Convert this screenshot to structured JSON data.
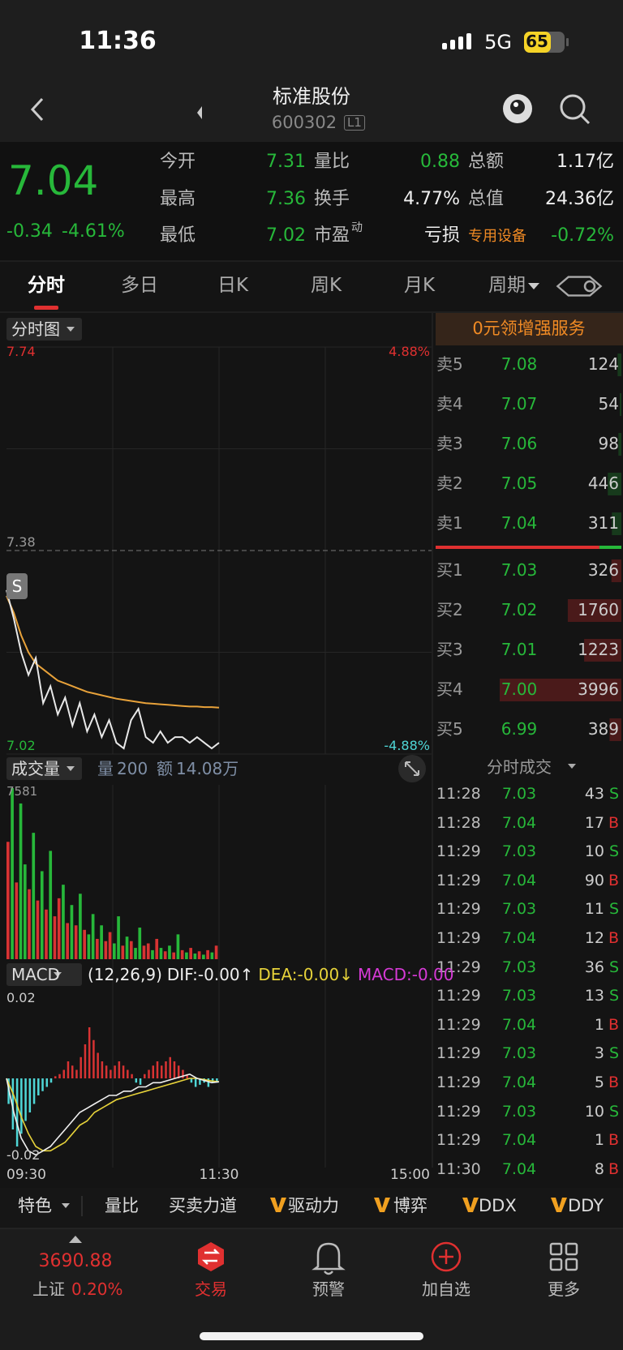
{
  "status_bar": {
    "time": "11:36",
    "network": "5G",
    "battery": "65"
  },
  "header": {
    "title": "标准股份",
    "code": "600302",
    "level": "L1"
  },
  "quote": {
    "price": "7.04",
    "change": "-0.34",
    "change_pct": "-4.61%",
    "fields": [
      {
        "label": "今开",
        "value": "7.31",
        "color": "#27b83a"
      },
      {
        "label": "量比",
        "value": "0.88",
        "color": "#27b83a"
      },
      {
        "label": "总额",
        "value": "1.17亿",
        "color": "#f0f0f0"
      },
      {
        "label": "最高",
        "value": "7.36",
        "color": "#27b83a"
      },
      {
        "label": "换手",
        "value": "4.77%",
        "color": "#f0f0f0"
      },
      {
        "label": "总值",
        "value": "24.36亿",
        "color": "#f0f0f0"
      },
      {
        "label": "最低",
        "value": "7.02",
        "color": "#27b83a"
      },
      {
        "label": "市盈",
        "sup": "动",
        "value": "亏损",
        "color": "#f0f0f0"
      },
      {
        "label": "专用设备",
        "label_color": "#f08a24",
        "value": "-0.72%",
        "color": "#27b83a"
      }
    ]
  },
  "tabs": [
    "分时",
    "多日",
    "日K",
    "周K",
    "月K",
    "周期"
  ],
  "chart": {
    "label": "分时图",
    "promo": "0元领增强服务",
    "marker": "S",
    "ylim": [
      7.02,
      7.74
    ],
    "yticks": [
      7.74,
      7.38,
      7.02
    ],
    "top_pct": "4.88%",
    "bottom_pct": "-4.88%",
    "price_color": "#e8e8e8",
    "avg_color": "#e8a23a",
    "price": [
      7.31,
      7.26,
      7.2,
      7.16,
      7.19,
      7.11,
      7.14,
      7.09,
      7.12,
      7.07,
      7.11,
      7.06,
      7.09,
      7.05,
      7.08,
      7.04,
      7.03,
      7.08,
      7.1,
      7.05,
      7.04,
      7.06,
      7.04,
      7.05,
      7.05,
      7.04,
      7.05,
      7.04,
      7.03,
      7.04
    ],
    "avg": [
      7.3,
      7.27,
      7.23,
      7.2,
      7.18,
      7.17,
      7.16,
      7.15,
      7.145,
      7.14,
      7.135,
      7.13,
      7.127,
      7.124,
      7.121,
      7.118,
      7.116,
      7.114,
      7.112,
      7.11,
      7.109,
      7.108,
      7.107,
      7.106,
      7.105,
      7.104,
      7.104,
      7.103,
      7.103,
      7.102
    ]
  },
  "order_book": [
    {
      "side": "卖5",
      "price": "7.08",
      "volume": 124
    },
    {
      "side": "卖4",
      "price": "7.07",
      "volume": 54
    },
    {
      "side": "卖3",
      "price": "7.06",
      "volume": 98
    },
    {
      "side": "卖2",
      "price": "7.05",
      "volume": 446
    },
    {
      "side": "卖1",
      "price": "7.04",
      "volume": 311
    },
    {
      "side": "买1",
      "price": "7.03",
      "volume": 326
    },
    {
      "side": "买2",
      "price": "7.02",
      "volume": 1760
    },
    {
      "side": "买3",
      "price": "7.01",
      "volume": 1223
    },
    {
      "side": "买4",
      "price": "7.00",
      "volume": 3996
    },
    {
      "side": "买5",
      "price": "6.99",
      "volume": 389
    }
  ],
  "trades": {
    "title": "分时成交",
    "rows": [
      {
        "time": "11:28",
        "price": "7.03",
        "volume": 43,
        "side": "S"
      },
      {
        "time": "11:28",
        "price": "7.04",
        "volume": 17,
        "side": "B"
      },
      {
        "time": "11:29",
        "price": "7.03",
        "volume": 10,
        "side": "S"
      },
      {
        "time": "11:29",
        "price": "7.04",
        "volume": 90,
        "side": "B"
      },
      {
        "time": "11:29",
        "price": "7.03",
        "volume": 11,
        "side": "S"
      },
      {
        "time": "11:29",
        "price": "7.04",
        "volume": 12,
        "side": "B"
      },
      {
        "time": "11:29",
        "price": "7.03",
        "volume": 36,
        "side": "S"
      },
      {
        "time": "11:29",
        "price": "7.03",
        "volume": 13,
        "side": "S"
      },
      {
        "time": "11:29",
        "price": "7.04",
        "volume": 1,
        "side": "B"
      },
      {
        "time": "11:29",
        "price": "7.03",
        "volume": 3,
        "side": "S"
      },
      {
        "time": "11:29",
        "price": "7.04",
        "volume": 5,
        "side": "B"
      },
      {
        "time": "11:29",
        "price": "7.03",
        "volume": 10,
        "side": "S"
      },
      {
        "time": "11:29",
        "price": "7.04",
        "volume": 1,
        "side": "B"
      },
      {
        "time": "11:30",
        "price": "7.04",
        "volume": 8,
        "side": "B"
      }
    ]
  },
  "volume": {
    "label": "成交量",
    "amount_label": "量",
    "amount": "200",
    "turnover_label": "额",
    "turnover": "14.08万",
    "ylim": [
      0,
      7581
    ],
    "yticks": [
      7581
    ],
    "values": [
      5200,
      7581,
      3400,
      6900,
      4200,
      3100,
      5600,
      2600,
      3900,
      2200,
      4800,
      1900,
      2700,
      3300,
      1600,
      2400,
      1500,
      2900,
      1300,
      1100,
      2000,
      900,
      1500,
      800,
      1200,
      700,
      1900,
      600,
      1000,
      800,
      500,
      1400,
      600,
      700,
      400,
      900,
      500,
      350,
      600,
      300,
      1100,
      400,
      300,
      500,
      250,
      350,
      200,
      400,
      300,
      600
    ],
    "colors": [
      "#d83333",
      "#27b83a",
      "#d83333",
      "#27b83a",
      "#27b83a",
      "#d83333",
      "#27b83a",
      "#d83333",
      "#27b83a",
      "#d83333",
      "#27b83a",
      "#d83333",
      "#d83333",
      "#27b83a",
      "#d83333",
      "#27b83a",
      "#d83333",
      "#27b83a",
      "#d83333",
      "#27b83a",
      "#27b83a",
      "#d83333",
      "#27b83a",
      "#d83333",
      "#d83333",
      "#27b83a",
      "#27b83a",
      "#d83333",
      "#27b83a",
      "#d83333",
      "#27b83a",
      "#27b83a",
      "#d83333",
      "#d83333",
      "#27b83a",
      "#d83333",
      "#27b83a",
      "#d83333",
      "#27b83a",
      "#d83333",
      "#27b83a",
      "#d83333",
      "#27b83a",
      "#d83333",
      "#27b83a",
      "#d83333",
      "#27b83a",
      "#d83333",
      "#27b83a",
      "#d83333"
    ]
  },
  "macd": {
    "label": "MACD",
    "params": "(12,26,9)",
    "dif_label": "DIF:-0.00↑",
    "dea_label": "DEA:-0.00↓",
    "macd_label": "MACD:-0.00",
    "ylim": [
      -0.02,
      0.02
    ],
    "yticks": [
      0.02,
      -0.02
    ],
    "pos_color": "#d83333",
    "neg_color": "#4fd6d6",
    "dif_color": "#f0f0f0",
    "dea_color": "#e6d23a",
    "bars": [
      -0.006,
      -0.012,
      -0.016,
      -0.013,
      -0.01,
      -0.008,
      -0.006,
      -0.004,
      -0.003,
      -0.002,
      -0.001,
      0.0005,
      0.001,
      0.002,
      0.004,
      0.003,
      0.002,
      0.005,
      0.008,
      0.012,
      0.009,
      0.006,
      0.004,
      0.003,
      0.002,
      0.003,
      0.004,
      0.003,
      0.002,
      0.001,
      -0.001,
      -0.0015,
      0.001,
      0.002,
      0.003,
      0.004,
      0.003,
      0.004,
      0.005,
      0.004,
      0.003,
      0.002,
      0.001,
      -0.001,
      -0.002,
      -0.0015,
      -0.001,
      -0.002,
      -0.001,
      -0.001
    ],
    "dif": [
      0.0,
      -0.008,
      -0.014,
      -0.017,
      -0.018,
      -0.017,
      -0.016,
      -0.014,
      -0.012,
      -0.01,
      -0.008,
      -0.007,
      -0.006,
      -0.005,
      -0.004,
      -0.004,
      -0.003,
      -0.003,
      -0.002,
      -0.002,
      -0.001,
      -0.001,
      -0.0005,
      0.0,
      0.0005,
      0.001,
      0.0,
      -0.0005,
      -0.001,
      -0.0008
    ],
    "dea": [
      0.0,
      -0.004,
      -0.009,
      -0.013,
      -0.016,
      -0.017,
      -0.017,
      -0.016,
      -0.015,
      -0.013,
      -0.011,
      -0.01,
      -0.008,
      -0.007,
      -0.006,
      -0.005,
      -0.0045,
      -0.004,
      -0.0035,
      -0.003,
      -0.0025,
      -0.002,
      -0.0015,
      -0.001,
      -0.0005,
      0.0,
      0.0,
      -0.0003,
      -0.0006,
      -0.0008
    ]
  },
  "time_axis": [
    "09:30",
    "11:30",
    "15:00"
  ],
  "toolbar": [
    "特色",
    "量比",
    "买卖力道",
    "驱动力",
    "博弈",
    "DDX",
    "DDY"
  ],
  "nav": {
    "index_value": "3690.88",
    "index_name": "上证",
    "index_change": "0.20%",
    "items": [
      "交易",
      "预警",
      "加自选",
      "更多"
    ]
  }
}
